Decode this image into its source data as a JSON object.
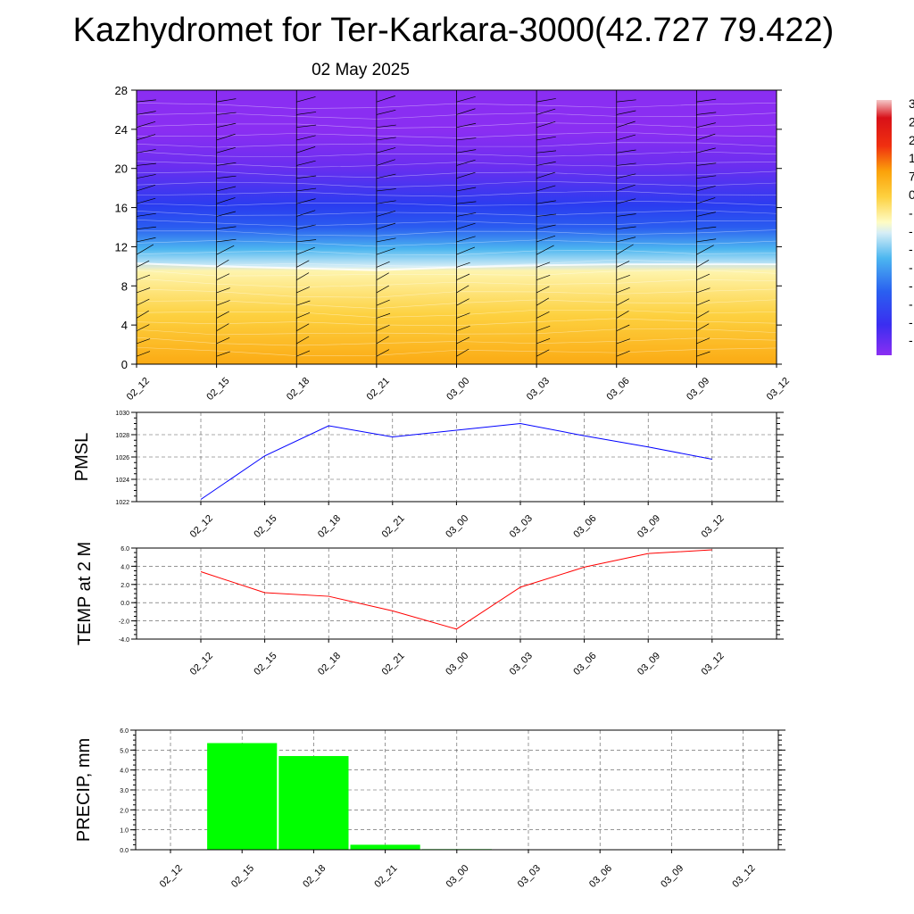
{
  "title": "Kazhydromet for Ter-Karkara-3000(42.727 79.422)",
  "subtitle": "02 May 2025",
  "chart_data": [
    {
      "type": "heatmap",
      "yticks": [
        "0",
        "4",
        "8",
        "12",
        "16",
        "20",
        "24",
        "28"
      ],
      "ylim": [
        0,
        28
      ],
      "xticks": [
        "02_12",
        "02_15",
        "02_18",
        "02_21",
        "03_00",
        "03_03",
        "03_06",
        "03_09",
        "03_12"
      ],
      "freezing_level": [
        10.3,
        10.0,
        9.8,
        9.6,
        9.9,
        10.1,
        10.2,
        10.2,
        10.2
      ],
      "colorbar_labels": [
        "3",
        "2",
        "2",
        "1",
        "7",
        "0",
        "-",
        "-",
        "-",
        "-",
        "-",
        "-",
        "-",
        "-"
      ],
      "colors": {
        "warm_low": "#fba20a",
        "warm_mid": "#fdd140",
        "warm_top": "#fefcc5",
        "cool_low": "#d6eef6",
        "cool_mid": "#4cb6f0",
        "cold_band": "#2a3cf0",
        "top": "#8a2ef2"
      }
    },
    {
      "type": "line",
      "ylabel": "PMSL",
      "categories": [
        "02_12",
        "02_15",
        "02_18",
        "02_21",
        "03_00",
        "03_03",
        "03_06",
        "03_09",
        "03_12"
      ],
      "values": [
        1022.2,
        1026.1,
        1028.8,
        1027.8,
        1028.4,
        1029.0,
        1027.9,
        1026.9,
        1025.8
      ],
      "yticks": [
        "1022",
        "1024",
        "1026",
        "1028",
        "1030"
      ],
      "ylim": [
        1022,
        1030
      ],
      "color": "#0000ff"
    },
    {
      "type": "line",
      "ylabel": "TEMP at 2 M",
      "categories": [
        "02_12",
        "02_15",
        "02_18",
        "02_21",
        "03_00",
        "03_03",
        "03_06",
        "03_09",
        "03_12"
      ],
      "values": [
        3.4,
        1.1,
        0.7,
        -0.9,
        -2.9,
        1.7,
        3.9,
        5.4,
        5.8
      ],
      "yticks": [
        "-4.0",
        "-2.0",
        "0.0",
        "2.0",
        "4.0",
        "6.0"
      ],
      "ylim": [
        -4,
        6
      ],
      "color": "#ff0000"
    },
    {
      "type": "bar",
      "ylabel": "PRECIP, mm",
      "categories": [
        "02_12",
        "02_15",
        "02_18",
        "02_21",
        "03_00",
        "03_03",
        "03_06",
        "03_09",
        "03_12"
      ],
      "values": [
        0,
        5.35,
        4.7,
        0.25,
        0.03,
        0,
        0,
        0,
        0
      ],
      "yticks": [
        "0.0",
        "1.0",
        "2.0",
        "3.0",
        "4.0",
        "5.0",
        "6.0"
      ],
      "ylim": [
        0,
        6
      ],
      "color": "#00ff00"
    }
  ]
}
